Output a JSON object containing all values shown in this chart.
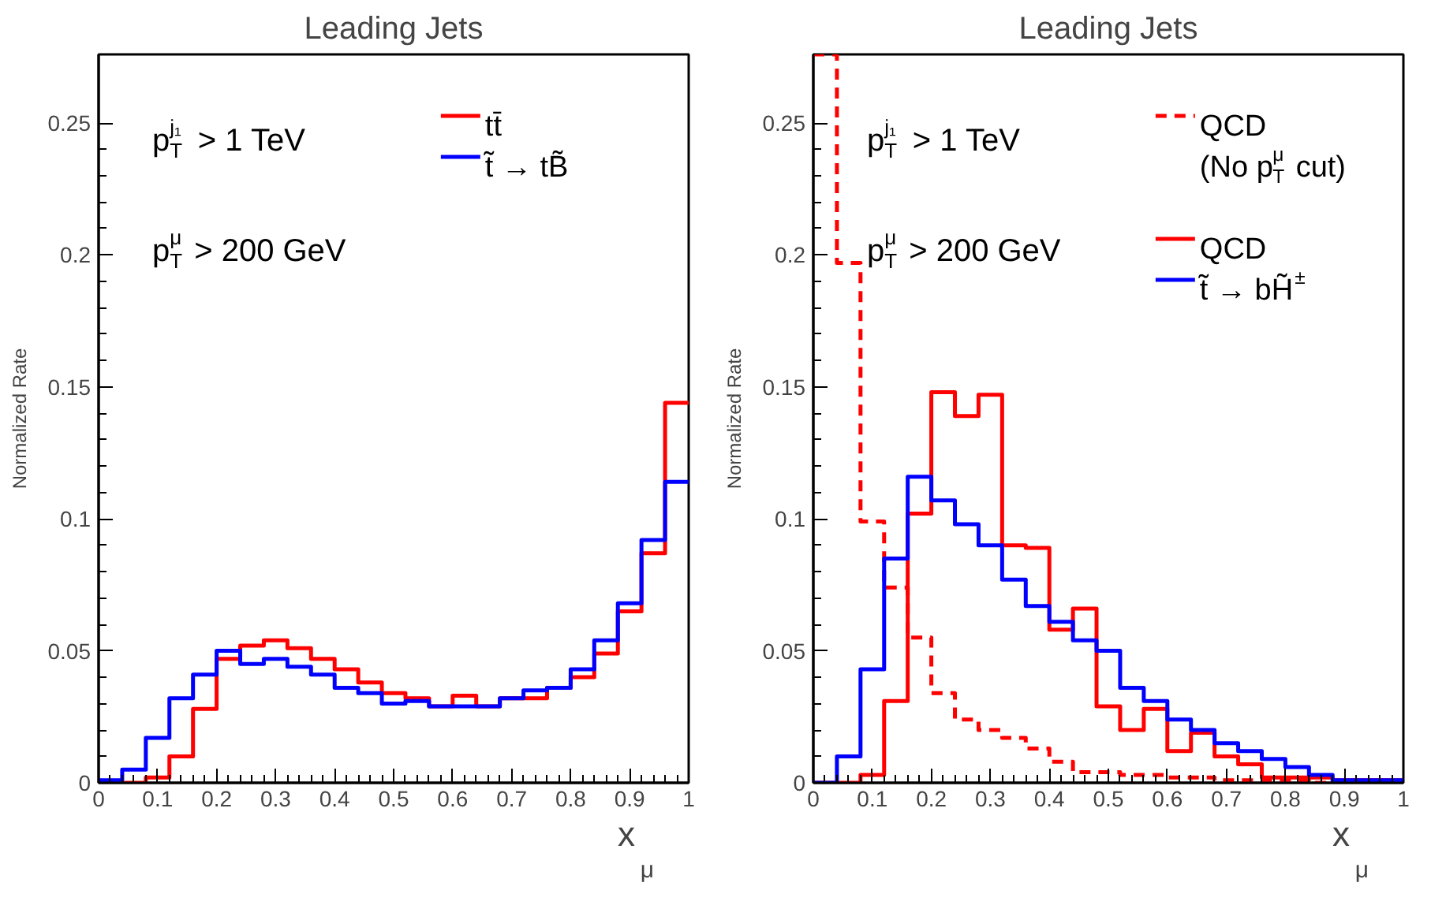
{
  "chart_data": [
    {
      "type": "histogram",
      "title": "Leading Jets",
      "xlabel": "x$_{μ}$",
      "ylabel": "Normalized Rate",
      "annotations": [
        "p$^{j₁}$$_{T}$ > 1 TeV",
        "p$^{μ}$$_{T}$ > 200 GeV"
      ],
      "bins": [
        0,
        0.04,
        0.08,
        0.12,
        0.16,
        0.2,
        0.24,
        0.28,
        0.32,
        0.36,
        0.4,
        0.44,
        0.48,
        0.52,
        0.56,
        0.6,
        0.64,
        0.68,
        0.72,
        0.76,
        0.8,
        0.84,
        0.88,
        0.92,
        0.96,
        1
      ],
      "series": [
        {
          "name": "tt̄",
          "color": "#ff0000",
          "values": [
            0,
            0,
            0.002,
            0.01,
            0.028,
            0.047,
            0.052,
            0.054,
            0.051,
            0.047,
            0.043,
            0.038,
            0.034,
            0.032,
            0.029,
            0.033,
            0.029,
            0.032,
            0.032,
            0.036,
            0.04,
            0.049,
            0.065,
            0.087,
            0.144
          ]
        },
        {
          "name": "t̃ → tB̃",
          "color": "#0000ff",
          "values": [
            0.001,
            0.005,
            0.017,
            0.032,
            0.041,
            0.05,
            0.045,
            0.047,
            0.044,
            0.041,
            0.036,
            0.034,
            0.03,
            0.031,
            0.029,
            0.029,
            0.029,
            0.032,
            0.035,
            0.036,
            0.043,
            0.054,
            0.068,
            0.092,
            0.114
          ]
        }
      ],
      "xlim": [
        0,
        1
      ],
      "ylim": [
        0,
        0.276
      ],
      "xticks": [
        0,
        0.1,
        0.2,
        0.3,
        0.4,
        0.5,
        0.6,
        0.7,
        0.8,
        0.9,
        1
      ],
      "yticks": [
        0,
        0.05,
        0.1,
        0.15,
        0.2,
        0.25
      ],
      "grid": false,
      "legend": "top right",
      "line_style": "solid"
    },
    {
      "type": "histogram",
      "title": "Leading Jets",
      "xlabel": "x$_{μ}$",
      "ylabel": "Normalized Rate",
      "annotations": [
        "p$^{j₁}$$_{T}$ > 1 TeV",
        "p$^{μ}$$_{T}$ > 200 GeV"
      ],
      "bins": [
        0,
        0.04,
        0.08,
        0.12,
        0.16,
        0.2,
        0.24,
        0.28,
        0.32,
        0.36,
        0.4,
        0.44,
        0.48,
        0.52,
        0.56,
        0.6,
        0.64,
        0.68,
        0.72,
        0.76,
        0.8,
        0.84,
        0.88,
        0.92,
        0.96,
        1
      ],
      "series": [
        {
          "name": "QCD\n(No p$^{μ}$$_{T}$ cut)",
          "color": "#ff0000",
          "line_style": "dashed",
          "values": [
            0.276,
            0.197,
            0.099,
            0.074,
            0.055,
            0.034,
            0.024,
            0.02,
            0.017,
            0.013,
            0.008,
            0.004,
            0.004,
            0.003,
            0.003,
            0.002,
            0.002,
            0.001,
            0.001,
            0.001,
            0.001,
            0,
            0,
            0,
            0
          ]
        },
        {
          "name": "QCD",
          "color": "#ff0000",
          "values": [
            0,
            0,
            0.003,
            0.031,
            0.102,
            0.148,
            0.139,
            0.147,
            0.09,
            0.089,
            0.058,
            0.066,
            0.029,
            0.02,
            0.028,
            0.012,
            0.019,
            0.01,
            0.007,
            0.002,
            0.002,
            0.002,
            0.001,
            0.001,
            0.001
          ]
        },
        {
          "name": "t̃ → bH̃$^{±}$",
          "color": "#0000ff",
          "values": [
            0,
            0.01,
            0.043,
            0.085,
            0.116,
            0.107,
            0.098,
            0.09,
            0.077,
            0.067,
            0.061,
            0.054,
            0.05,
            0.036,
            0.031,
            0.024,
            0.02,
            0.015,
            0.012,
            0.009,
            0.006,
            0.003,
            0.001,
            0.001,
            0.001
          ]
        }
      ],
      "xlim": [
        0,
        1
      ],
      "ylim": [
        0,
        0.276
      ],
      "xticks": [
        0,
        0.1,
        0.2,
        0.3,
        0.4,
        0.5,
        0.6,
        0.7,
        0.8,
        0.9,
        1
      ],
      "yticks": [
        0,
        0.05,
        0.1,
        0.15,
        0.2,
        0.25
      ],
      "grid": false,
      "legend": "top right",
      "line_style": "solid"
    }
  ]
}
